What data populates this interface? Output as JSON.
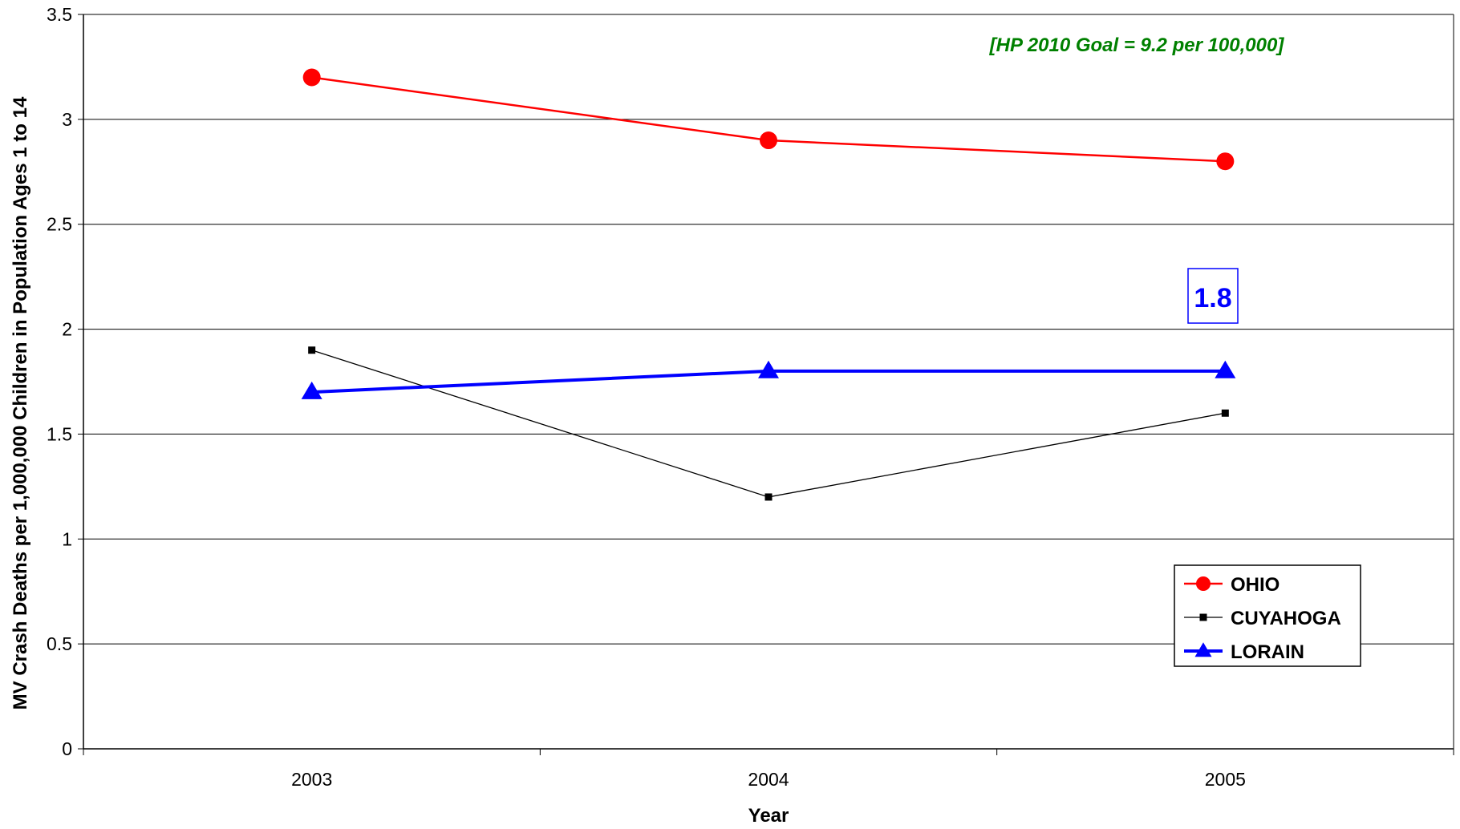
{
  "chart_data": {
    "type": "line",
    "categories": [
      "2003",
      "2004",
      "2005"
    ],
    "series": [
      {
        "name": "OHIO",
        "values": [
          3.2,
          2.9,
          2.8
        ],
        "color": "#ff0000",
        "marker": "circle"
      },
      {
        "name": "CUYAHOGA",
        "values": [
          1.9,
          1.2,
          1.6
        ],
        "color": "#000000",
        "marker": "square"
      },
      {
        "name": "LORAIN",
        "values": [
          1.7,
          1.8,
          1.8
        ],
        "color": "#0000ff",
        "marker": "triangle"
      }
    ],
    "xlabel": "Year",
    "ylabel": "MV Crash Deaths per 1,000,000 Children in Population Ages 1 to 14",
    "ylim": [
      0,
      3.5
    ],
    "yticks": [
      "0",
      "0.5",
      "1",
      "1.5",
      "2",
      "2.5",
      "3",
      "3.5"
    ],
    "grid": true,
    "legend_position": "bottom-right",
    "annotations": [
      {
        "text": "[HP 2010 Goal = 9.2 per 100,000]",
        "color": "#008000"
      },
      {
        "text": "1.8",
        "color": "#0000ff"
      }
    ]
  }
}
